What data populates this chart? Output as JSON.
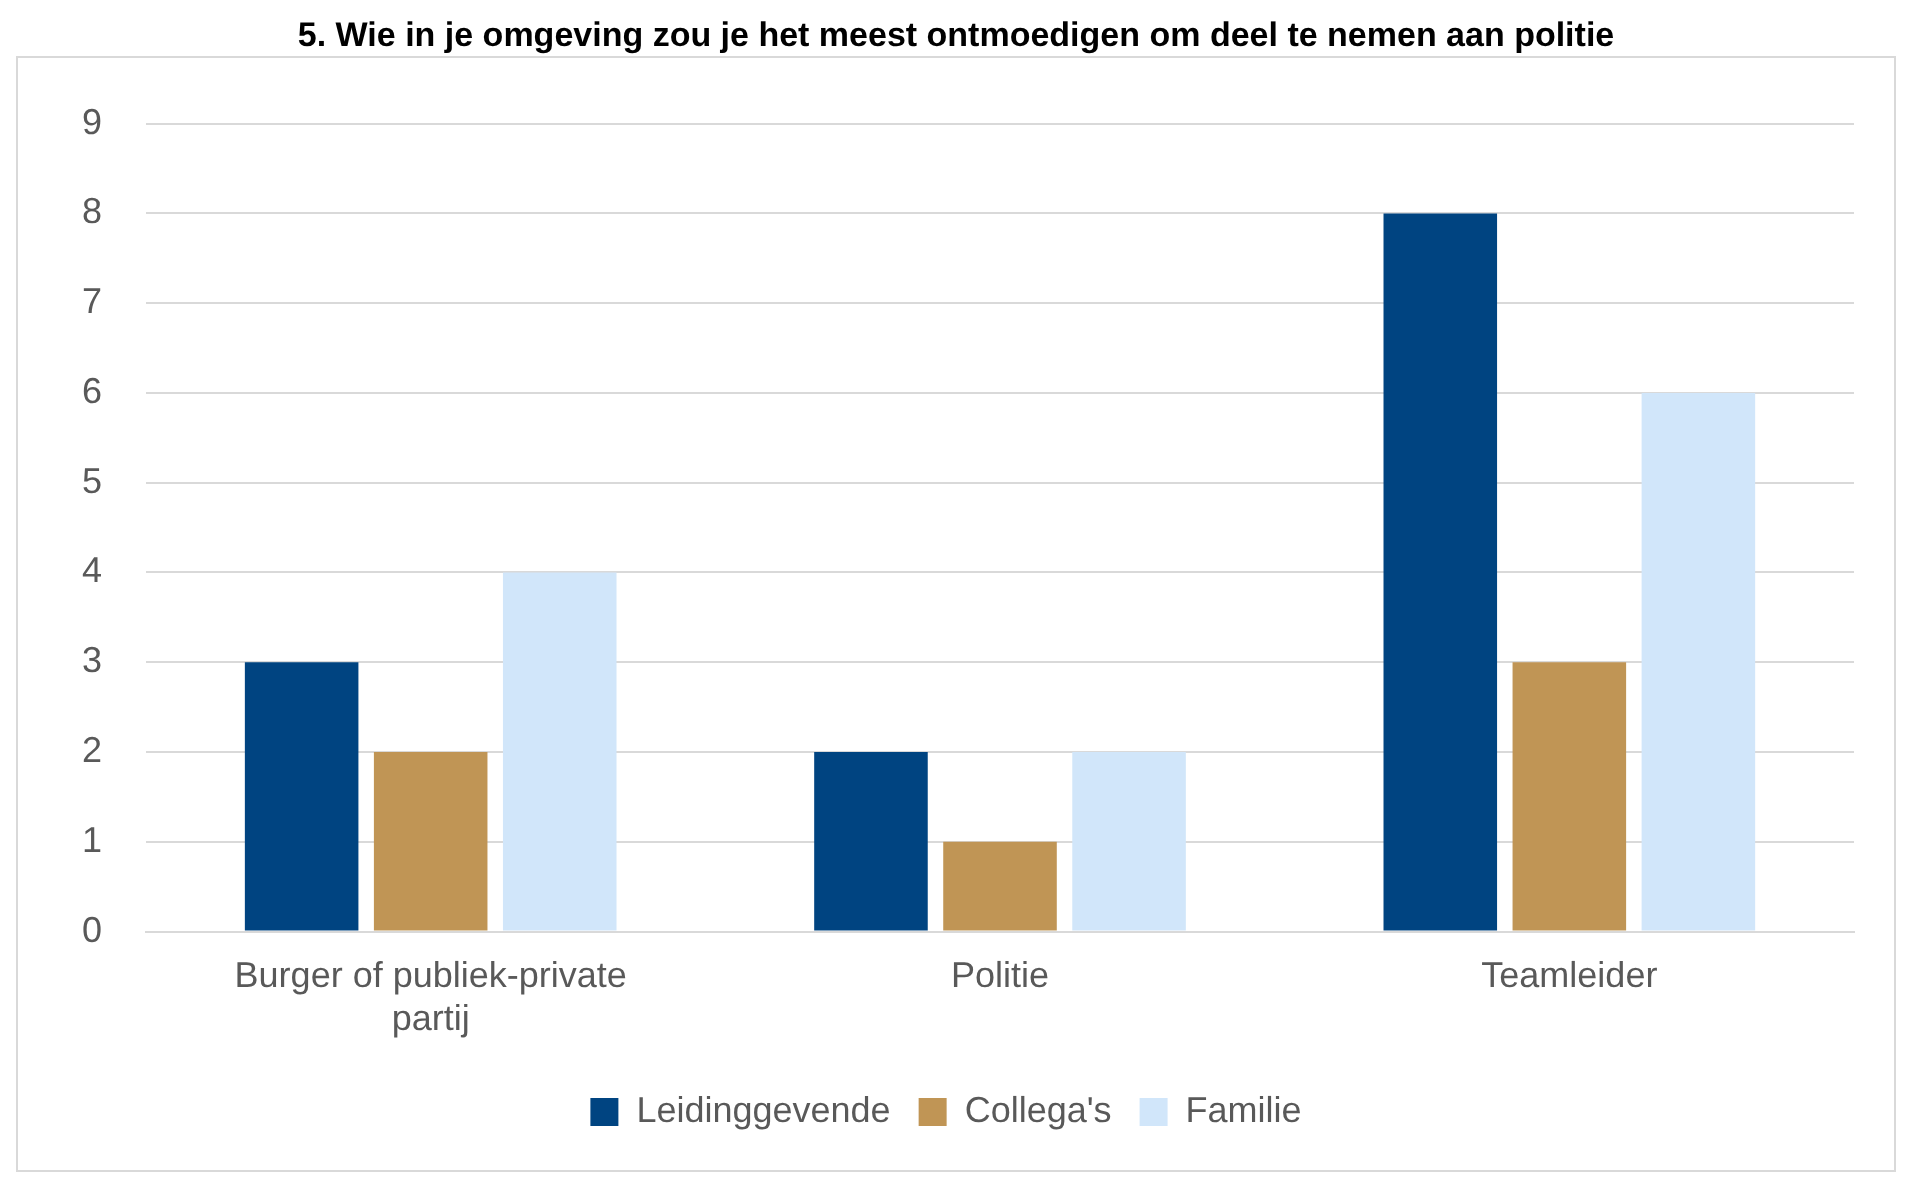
{
  "chart_data": {
    "type": "bar",
    "title": "5. Wie in je omgeving zou je het meest ontmoedigen om deel te nemen aan politie",
    "categories": [
      [
        "Burger of publiek-private",
        "partij"
      ],
      "Politie",
      "Teamleider"
    ],
    "series": [
      {
        "name": "Leidinggevende",
        "color": "#004481",
        "values": [
          3,
          2,
          8
        ]
      },
      {
        "name": "Collega's",
        "color": "#c09555",
        "values": [
          2,
          1,
          3
        ]
      },
      {
        "name": "Familie",
        "color": "#d1e6fa",
        "values": [
          4,
          2,
          6
        ]
      }
    ],
    "ylim": [
      0,
      9
    ],
    "yticks": [
      0,
      1,
      2,
      3,
      4,
      5,
      6,
      7,
      8,
      9
    ],
    "grid": "y",
    "legend": "bottom"
  }
}
